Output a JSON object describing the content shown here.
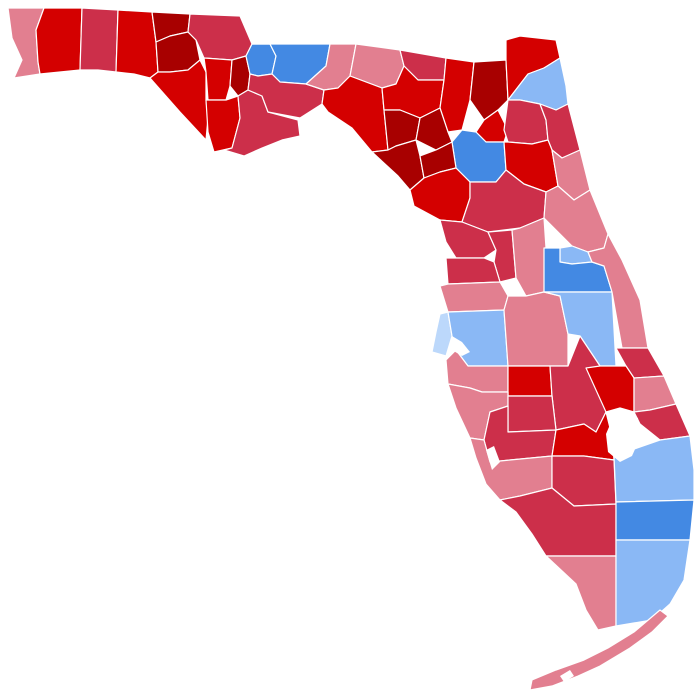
{
  "map": {
    "colors": {
      "rep_strong": "#a80000",
      "rep_likely": "#d40000",
      "rep_lean": "#cc2f4a",
      "rep_tilt": "#e27f90",
      "dem_lean": "#4389e3",
      "dem_tilt": "#8ab8f5",
      "dem_slight": "#bcd8fb",
      "water": "#ffffff"
    },
    "regions": [
      {
        "id": "escambia",
        "cls": "rep_tilt"
      },
      {
        "id": "santa-rosa",
        "cls": "rep_likely"
      },
      {
        "id": "okaloosa",
        "cls": "rep_lean"
      },
      {
        "id": "walton",
        "cls": "rep_likely"
      },
      {
        "id": "holmes",
        "cls": "rep_strong"
      },
      {
        "id": "washington",
        "cls": "rep_strong"
      },
      {
        "id": "jackson",
        "cls": "rep_lean"
      },
      {
        "id": "bay",
        "cls": "rep_likely"
      },
      {
        "id": "calhoun",
        "cls": "rep_likely"
      },
      {
        "id": "liberty",
        "cls": "rep_strong"
      },
      {
        "id": "gulf",
        "cls": "rep_likely"
      },
      {
        "id": "franklin",
        "cls": "rep_lean"
      },
      {
        "id": "gadsden",
        "cls": "dem_lean"
      },
      {
        "id": "leon",
        "cls": "dem_lean"
      },
      {
        "id": "wakulla",
        "cls": "rep_lean"
      },
      {
        "id": "jefferson",
        "cls": "rep_tilt"
      },
      {
        "id": "madison",
        "cls": "rep_tilt"
      },
      {
        "id": "taylor",
        "cls": "rep_likely"
      },
      {
        "id": "hamilton",
        "cls": "rep_lean"
      },
      {
        "id": "suwannee",
        "cls": "rep_likely"
      },
      {
        "id": "lafayette",
        "cls": "rep_strong"
      },
      {
        "id": "dixie",
        "cls": "rep_strong"
      },
      {
        "id": "columbia",
        "cls": "rep_likely"
      },
      {
        "id": "baker",
        "cls": "rep_strong"
      },
      {
        "id": "nassau",
        "cls": "rep_likely"
      },
      {
        "id": "duval",
        "cls": "dem_tilt"
      },
      {
        "id": "union",
        "cls": "rep_strong"
      },
      {
        "id": "bradford",
        "cls": "rep_likely"
      },
      {
        "id": "clay",
        "cls": "rep_lean"
      },
      {
        "id": "st-johns",
        "cls": "rep_lean"
      },
      {
        "id": "alachua",
        "cls": "dem_lean"
      },
      {
        "id": "gilchrist",
        "cls": "rep_strong"
      },
      {
        "id": "levy",
        "cls": "rep_likely"
      },
      {
        "id": "putnam",
        "cls": "rep_likely"
      },
      {
        "id": "marion",
        "cls": "rep_lean"
      },
      {
        "id": "flagler",
        "cls": "rep_tilt"
      },
      {
        "id": "volusia",
        "cls": "rep_tilt"
      },
      {
        "id": "citrus",
        "cls": "rep_lean"
      },
      {
        "id": "sumter",
        "cls": "rep_lean"
      },
      {
        "id": "lake",
        "cls": "rep_tilt"
      },
      {
        "id": "seminole",
        "cls": "dem_tilt"
      },
      {
        "id": "orange",
        "cls": "dem_lean"
      },
      {
        "id": "hernando",
        "cls": "rep_lean"
      },
      {
        "id": "pasco",
        "cls": "rep_tilt"
      },
      {
        "id": "pinellas",
        "cls": "dem_slight"
      },
      {
        "id": "hillsborough",
        "cls": "dem_tilt"
      },
      {
        "id": "polk",
        "cls": "rep_tilt"
      },
      {
        "id": "osceola",
        "cls": "dem_tilt"
      },
      {
        "id": "brevard",
        "cls": "rep_tilt"
      },
      {
        "id": "indian-river",
        "cls": "rep_lean"
      },
      {
        "id": "manatee",
        "cls": "rep_tilt"
      },
      {
        "id": "hardee",
        "cls": "rep_likely"
      },
      {
        "id": "highlands",
        "cls": "rep_lean"
      },
      {
        "id": "okeechobee",
        "cls": "rep_likely"
      },
      {
        "id": "st-lucie",
        "cls": "rep_tilt"
      },
      {
        "id": "sarasota",
        "cls": "rep_tilt"
      },
      {
        "id": "desoto",
        "cls": "rep_lean"
      },
      {
        "id": "martin",
        "cls": "rep_lean"
      },
      {
        "id": "charlotte",
        "cls": "rep_lean"
      },
      {
        "id": "glades",
        "cls": "rep_likely"
      },
      {
        "id": "lee",
        "cls": "rep_tilt"
      },
      {
        "id": "hendry",
        "cls": "rep_lean"
      },
      {
        "id": "palm-beach",
        "cls": "dem_tilt"
      },
      {
        "id": "collier",
        "cls": "rep_lean"
      },
      {
        "id": "broward",
        "cls": "dem_lean"
      },
      {
        "id": "miami-dade",
        "cls": "dem_tilt"
      },
      {
        "id": "monroe-mainland",
        "cls": "rep_tilt"
      },
      {
        "id": "monroe-keys",
        "cls": "rep_tilt"
      }
    ]
  }
}
